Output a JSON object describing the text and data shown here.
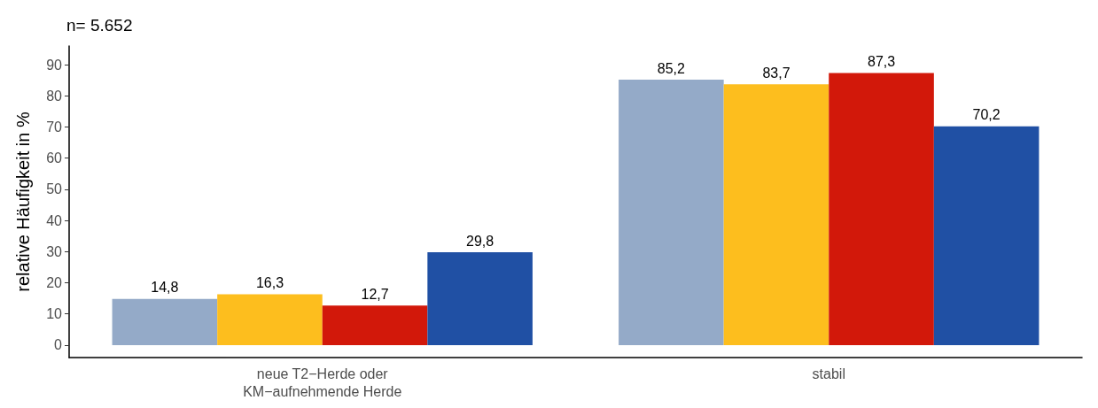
{
  "chart_data": {
    "type": "bar",
    "title": "n= 5.652",
    "ylabel": "relative Häufigkeit in %",
    "categories": [
      "neue T2−Herde oder\nKM−aufnehmende Herde",
      "stabil"
    ],
    "series": [
      {
        "color": "#94aac8",
        "values": [
          14.8,
          85.2
        ],
        "value_labels": [
          "14,8",
          "85,2"
        ]
      },
      {
        "color": "#fdbe1e",
        "values": [
          16.3,
          83.7
        ],
        "value_labels": [
          "16,3",
          "83,7"
        ]
      },
      {
        "color": "#d2180a",
        "values": [
          12.7,
          87.3
        ],
        "value_labels": [
          "12,7",
          "87,3"
        ]
      },
      {
        "color": "#2050a4",
        "values": [
          29.8,
          70.2
        ],
        "value_labels": [
          "29,8",
          "70,2"
        ]
      }
    ],
    "ylim": [
      -4,
      96
    ],
    "yticks": [
      0,
      10,
      20,
      30,
      40,
      50,
      60,
      70,
      80,
      90
    ],
    "grid": false
  }
}
